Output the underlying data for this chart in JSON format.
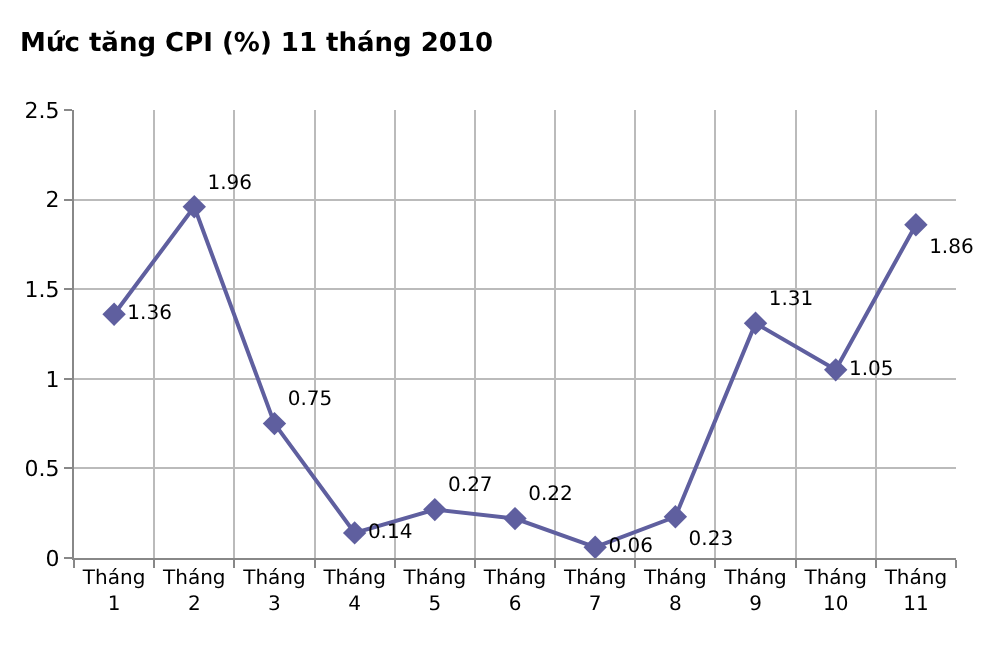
{
  "chart_data": {
    "type": "line",
    "title": "Mức tăng CPI (%) 11 tháng 2010",
    "categories": [
      "Tháng 1",
      "Tháng 2",
      "Tháng 3",
      "Tháng 4",
      "Tháng 5",
      "Tháng 6",
      "Tháng 7",
      "Tháng 8",
      "Tháng 9",
      "Tháng 10",
      "Tháng 11"
    ],
    "series": [
      {
        "color": "#5f5f9f",
        "values": [
          1.36,
          1.96,
          0.75,
          0.14,
          0.27,
          0.22,
          0.06,
          0.23,
          1.31,
          1.05,
          1.86
        ]
      }
    ],
    "ylim": [
      0,
      2.5
    ],
    "yticks": [
      0,
      0.5,
      1,
      1.5,
      2,
      2.5
    ],
    "grid": true,
    "marker": "diamond",
    "line_style": "solid",
    "data_labels": true
  }
}
